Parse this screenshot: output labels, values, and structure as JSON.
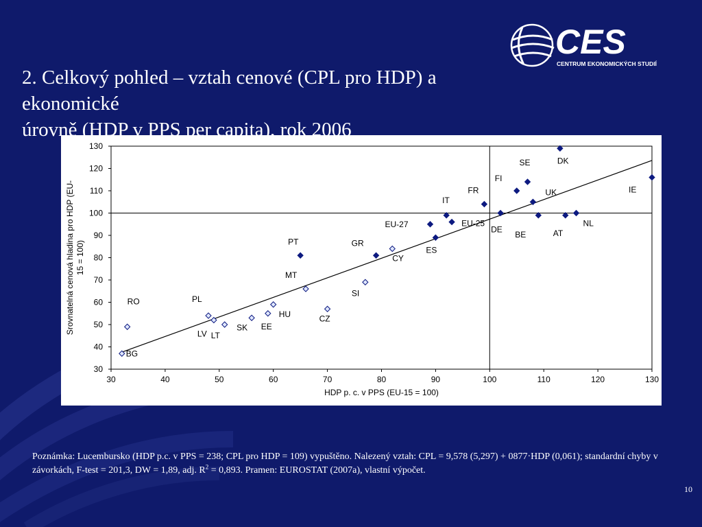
{
  "slide": {
    "title_line1": "2. Celkový pohled – vztah cenové (CPL pro HDP) a ekonomické",
    "title_line2": "úrovně (HDP v PPS per capita), rok 2006",
    "note_part1": "Poznámka: Lucembursko (HDP p.c. v PPS = 238; CPL pro HDP = 109) vypuštěno. Nalezený vztah: CPL = 9,578 (5,297) + 0877·HDP (0,061); standardní chyby v závorkách, F-test = 201,3, DW = 1,89, adj. R",
    "note_sup": "2",
    "note_part2": " = 0,893. Pramen: EUROSTAT (2007a), vlastní výpočet.",
    "page_number": "10"
  },
  "logo": {
    "text": "CES",
    "subtitle": "CENTRUM EKONOMICKÝCH STUDIÍ"
  },
  "colors": {
    "background": "#0f1a6b",
    "marker_fill": "#0d1a80",
    "marker_hollow_fill": "#dfe7ff",
    "axis": "#000000"
  },
  "chart_data": {
    "type": "scatter",
    "xlabel": "HDP p. c. v PPS (EU-15 = 100)",
    "ylabel": "Srovnatelná cenová hladina pro HDP (EU-15 = 100)",
    "xlim": [
      30,
      130
    ],
    "ylim": [
      30,
      130
    ],
    "xticks": [
      30,
      40,
      50,
      60,
      70,
      80,
      90,
      100,
      110,
      120,
      130
    ],
    "yticks": [
      30,
      40,
      50,
      60,
      70,
      80,
      90,
      100,
      110,
      120,
      130
    ],
    "reference_lines": {
      "x": 100,
      "y": 100
    },
    "regression": {
      "intercept": 9.578,
      "slope": 0.877,
      "x_range": [
        32,
        130
      ]
    },
    "points": [
      {
        "label": "BG",
        "x": 32,
        "y": 37,
        "hollow": true
      },
      {
        "label": "RO",
        "x": 33,
        "y": 49,
        "hollow": true
      },
      {
        "label": "PL",
        "x": 48,
        "y": 54,
        "hollow": true
      },
      {
        "label": "LV",
        "x": 49,
        "y": 52,
        "hollow": true
      },
      {
        "label": "LT",
        "x": 51,
        "y": 50,
        "hollow": true
      },
      {
        "label": "SK",
        "x": 56,
        "y": 53,
        "hollow": true
      },
      {
        "label": "EE",
        "x": 59,
        "y": 55,
        "hollow": true
      },
      {
        "label": "HU",
        "x": 60,
        "y": 59,
        "hollow": true
      },
      {
        "label": "MT",
        "x": 66,
        "y": 66,
        "hollow": true
      },
      {
        "label": "CZ",
        "x": 70,
        "y": 57,
        "hollow": true
      },
      {
        "label": "SI",
        "x": 77,
        "y": 69,
        "hollow": true
      },
      {
        "label": "CY",
        "x": 82,
        "y": 84,
        "hollow": true
      },
      {
        "label": "PT",
        "x": 65,
        "y": 81,
        "hollow": false
      },
      {
        "label": "GR",
        "x": 79,
        "y": 81,
        "hollow": false
      },
      {
        "label": "ES",
        "x": 90,
        "y": 89,
        "hollow": false
      },
      {
        "label": "EU-27",
        "x": 89,
        "y": 95,
        "hollow": false
      },
      {
        "label": "EU-25",
        "x": 93,
        "y": 96,
        "hollow": false
      },
      {
        "label": "IT",
        "x": 92,
        "y": 99,
        "hollow": false
      },
      {
        "label": "FR",
        "x": 99,
        "y": 104,
        "hollow": false
      },
      {
        "label": "DE",
        "x": 102,
        "y": 100,
        "hollow": false
      },
      {
        "label": "FI",
        "x": 105,
        "y": 110,
        "hollow": false
      },
      {
        "label": "SE",
        "x": 107,
        "y": 114,
        "hollow": false
      },
      {
        "label": "UK",
        "x": 108,
        "y": 105,
        "hollow": false
      },
      {
        "label": "BE",
        "x": 109,
        "y": 99,
        "hollow": false
      },
      {
        "label": "AT",
        "x": 114,
        "y": 99,
        "hollow": false
      },
      {
        "label": "NL",
        "x": 116,
        "y": 100,
        "hollow": false
      },
      {
        "label": "DK",
        "x": 113,
        "y": 129,
        "hollow": false
      },
      {
        "label": "IE",
        "x": 130,
        "y": 116,
        "hollow": false
      }
    ]
  }
}
